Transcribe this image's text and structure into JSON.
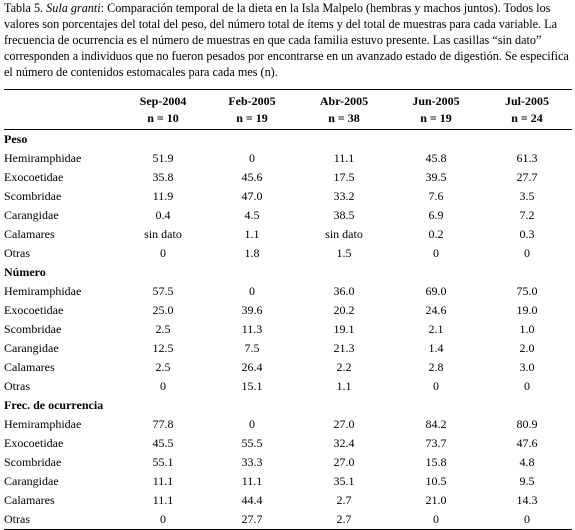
{
  "caption": {
    "prefix": "Tabla 5. ",
    "species": "Sula granti",
    "text": ": Comparación temporal de la dieta en la Isla Malpelo (hembras y machos juntos). Todos los valores son porcentajes del total del peso, del número total de ítems y del total de muestras para cada variable. La frecuencia de ocurrencia es el número de muestras en que cada familia estuvo presente. Las casillas “sin dato” corresponden a individuos que no fueron pesados por encontrarse en un avanzado estado de digestión. Se especifica el número de contenidos estomacales para cada mes (n)."
  },
  "table": {
    "columns": [
      {
        "month": "Sep-2004",
        "n": "n = 10"
      },
      {
        "month": "Feb-2005",
        "n": "n = 19"
      },
      {
        "month": "Abr-2005",
        "n": "n = 38"
      },
      {
        "month": "Jun-2005",
        "n": "n = 19"
      },
      {
        "month": "Jul-2005",
        "n": "n = 24"
      }
    ],
    "sections": [
      {
        "title": "Peso",
        "rows": [
          {
            "family": "Hemiramphidae",
            "values": [
              "51.9",
              "0",
              "11.1",
              "45.8",
              "61.3"
            ]
          },
          {
            "family": "Exocoetidae",
            "values": [
              "35.8",
              "45.6",
              "17.5",
              "39.5",
              "27.7"
            ]
          },
          {
            "family": "Scombridae",
            "values": [
              "11.9",
              "47.0",
              "33.2",
              "7.6",
              "3.5"
            ]
          },
          {
            "family": "Carangidae",
            "values": [
              "0.4",
              "4.5",
              "38.5",
              "6.9",
              "7.2"
            ]
          },
          {
            "family": "Calamares",
            "values": [
              "sin dato",
              "1.1",
              "sin dato",
              "0.2",
              "0.3"
            ]
          },
          {
            "family": "Otras",
            "values": [
              "0",
              "1.8",
              "1.5",
              "0",
              "0"
            ]
          }
        ]
      },
      {
        "title": "Número",
        "rows": [
          {
            "family": "Hemiramphidae",
            "values": [
              "57.5",
              "0",
              "36.0",
              "69.0",
              "75.0"
            ]
          },
          {
            "family": "Exocoetidae",
            "values": [
              "25.0",
              "39.6",
              "20.2",
              "24.6",
              "19.0"
            ]
          },
          {
            "family": "Scombridae",
            "values": [
              "2.5",
              "11.3",
              "19.1",
              "2.1",
              "1.0"
            ]
          },
          {
            "family": "Carangidae",
            "values": [
              "12.5",
              "7.5",
              "21.3",
              "1.4",
              "2.0"
            ]
          },
          {
            "family": "Calamares",
            "values": [
              "2.5",
              "26.4",
              "2.2",
              "2.8",
              "3.0"
            ]
          },
          {
            "family": "Otras",
            "values": [
              "0",
              "15.1",
              "1.1",
              "0",
              "0"
            ]
          }
        ]
      },
      {
        "title": "Frec. de ocurrencia",
        "rows": [
          {
            "family": "Hemiramphidae",
            "values": [
              "77.8",
              "0",
              "27.0",
              "84.2",
              "80.9"
            ]
          },
          {
            "family": "Exocoetidae",
            "values": [
              "45.5",
              "55.5",
              "32.4",
              "73.7",
              "47.6"
            ]
          },
          {
            "family": "Scombridae",
            "values": [
              "55.1",
              "33.3",
              "27.0",
              "15.8",
              "4.8"
            ]
          },
          {
            "family": "Carangidae",
            "values": [
              "11.1",
              "11.1",
              "35.1",
              "10.5",
              "9.5"
            ]
          },
          {
            "family": "Calamares",
            "values": [
              "11.1",
              "44.4",
              "2.7",
              "21.0",
              "14.3"
            ]
          },
          {
            "family": "Otras",
            "values": [
              "0",
              "27.7",
              "2.7",
              "0",
              "0"
            ]
          }
        ]
      }
    ]
  }
}
